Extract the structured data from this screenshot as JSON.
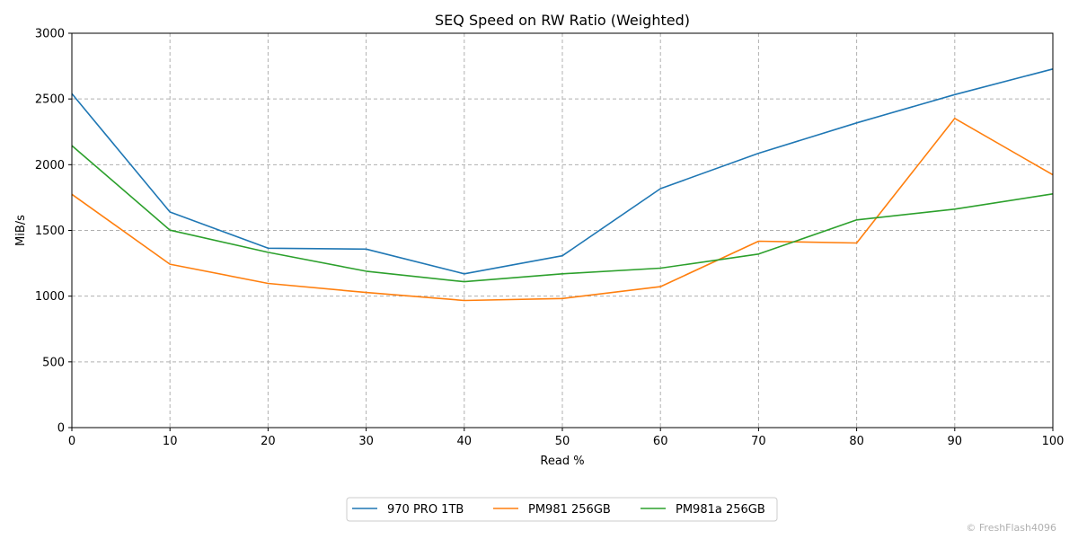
{
  "chart_data": {
    "type": "line",
    "title": "SEQ Speed on RW Ratio (Weighted)",
    "xlabel": "Read %",
    "ylabel": "MiB/s",
    "x": [
      0,
      10,
      20,
      30,
      40,
      50,
      60,
      70,
      80,
      90,
      100
    ],
    "xlim": [
      0,
      100
    ],
    "ylim": [
      0,
      3000
    ],
    "xticks": [
      0,
      10,
      20,
      30,
      40,
      50,
      60,
      70,
      80,
      90,
      100
    ],
    "yticks": [
      0,
      500,
      1000,
      1500,
      2000,
      2500,
      3000
    ],
    "grid": true,
    "legend_position": "bottom-center",
    "series": [
      {
        "name": "970 PRO 1TB",
        "color": "#1f77b4",
        "values": [
          2540,
          1640,
          1365,
          1358,
          1170,
          1307,
          1818,
          2087,
          2318,
          2533,
          2728
        ]
      },
      {
        "name": "PM981 256GB",
        "color": "#ff7f0e",
        "values": [
          1775,
          1243,
          1097,
          1028,
          967,
          982,
          1072,
          1418,
          1404,
          2352,
          1923
        ]
      },
      {
        "name": "PM981a 256GB",
        "color": "#2ca02c",
        "values": [
          2145,
          1502,
          1333,
          1190,
          1110,
          1170,
          1213,
          1320,
          1580,
          1662,
          1778
        ]
      }
    ]
  },
  "watermark": "© FreshFlash4096"
}
